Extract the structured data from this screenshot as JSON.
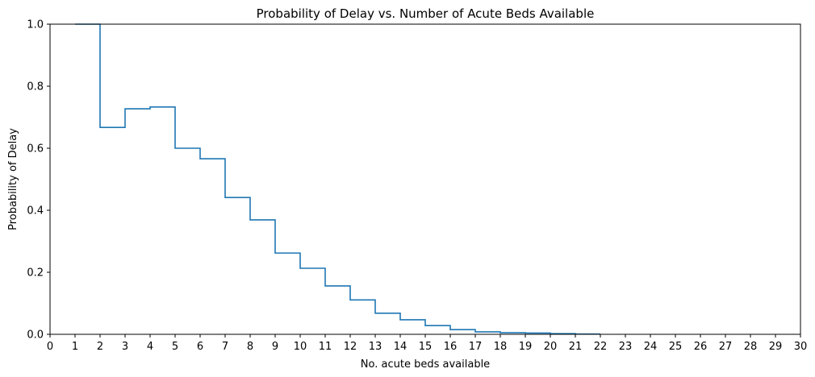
{
  "chart_data": {
    "type": "line",
    "title": "Probability of Delay vs. Number of Acute Beds Available",
    "xlabel": "No. acute beds available",
    "ylabel": "Probability of Delay",
    "xlim": [
      0,
      30
    ],
    "ylim": [
      0,
      1
    ],
    "x_ticks": [
      "0",
      "1",
      "2",
      "3",
      "4",
      "5",
      "6",
      "7",
      "8",
      "9",
      "10",
      "11",
      "12",
      "13",
      "14",
      "15",
      "16",
      "17",
      "18",
      "19",
      "20",
      "21",
      "22",
      "23",
      "24",
      "25",
      "26",
      "27",
      "28",
      "29",
      "30"
    ],
    "y_ticks": [
      "0.0",
      "0.2",
      "0.4",
      "0.6",
      "0.8",
      "1.0"
    ],
    "grid": false,
    "step_style": "post",
    "series": [
      {
        "color": "#1f77b4",
        "x": [
          1,
          2,
          3,
          4,
          5,
          6,
          7,
          8,
          9,
          10,
          11,
          12,
          13,
          14,
          15,
          16,
          17,
          18,
          19,
          20,
          21,
          22
        ],
        "y": [
          1.0,
          0.667,
          0.727,
          0.733,
          0.6,
          0.566,
          0.441,
          0.369,
          0.262,
          0.213,
          0.156,
          0.111,
          0.068,
          0.047,
          0.028,
          0.015,
          0.008,
          0.005,
          0.004,
          0.002,
          0.001,
          0.001
        ]
      }
    ]
  }
}
